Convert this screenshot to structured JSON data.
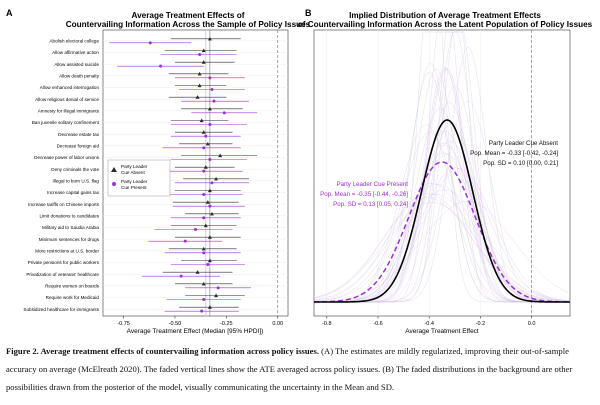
{
  "panels": {
    "a": {
      "letter": "A",
      "title_line1": "Average Treatment Effects of",
      "title_line2": "Countervailing Information Across the Sample of Policy Issues",
      "xlabel": "Average Treatment Effect (Median [95% HPDI])"
    },
    "b": {
      "letter": "B",
      "title_line1": "Implied Distribution of Average Treatment Effects",
      "title_line2": "of Countervailing Information Across the Latent Population of Policy Issues",
      "xlabel": "Average Treatment Effect",
      "annotation_absent": {
        "line1": "Party Leader Cue Absent",
        "line2": "Pop. Mean = -0.33 [-0.42, -0.24]",
        "line3": "Pop. SD = 0.10 [0.00, 0.21]"
      },
      "annotation_present": {
        "line1": "Party Leader Cue Present",
        "line2": "Pop. Mean = -0.35 [-0.44, -0.26]",
        "line3": "Pop. SD = 0.13 [0.05, 0.24]"
      }
    }
  },
  "colors": {
    "absent": "#2b2b2b",
    "present": "#9b30d9",
    "reference_line": "#e05a5a",
    "faded_line": "#c9c9d6",
    "faded_present": "#d9b8f0"
  },
  "chart_data": [
    {
      "type": "scatter",
      "panel": "A",
      "xlim": [
        -0.85,
        0.05
      ],
      "xticks": [
        "-0.75",
        "-0.50",
        "-0.25",
        "0.00"
      ],
      "xtick_values": [
        -0.75,
        -0.5,
        -0.25,
        0.0
      ],
      "reference_line_x": 0.0,
      "average_lines": {
        "absent": -0.33,
        "present": -0.35
      },
      "legend": {
        "absent": "Party Leader Cue Absent",
        "present": "Party Leader Cue Present",
        "placement": "upper-left, inside plot"
      },
      "categories": [
        "Abolish electoral college",
        "Allow affirmative action",
        "Allow assisted suicide",
        "Allow death penalty",
        "Allow enhanced interrogation",
        "Allow religious denial of service",
        "Amnesty for illegal immigrants",
        "Ban juvenile solitary confinement",
        "Decrease estate tax",
        "Decrease foreign aid",
        "Decrease power of labor unions",
        "Deny criminals the vote",
        "Illegal to burn U.S. flag",
        "Increase capital gains tax",
        "Increase tariffs on Chinese imports",
        "Limit donations to candidates",
        "Military aid to Saudia Arabia",
        "Minimum sentences for drugs",
        "More restrictions at U.S. border",
        "Private pensions for public workers",
        "Privatization of veterans' healthcare",
        "Require women on boards",
        "Require work for Medicaid",
        "Subsidized healthcare for immigrants"
      ],
      "series": [
        {
          "name": "Party Leader Cue Absent",
          "marker": "triangle",
          "values": [
            -0.33,
            -0.36,
            -0.36,
            -0.38,
            -0.38,
            -0.39,
            -0.33,
            -0.37,
            -0.36,
            -0.34,
            -0.28,
            -0.35,
            -0.3,
            -0.33,
            -0.34,
            -0.32,
            -0.35,
            -0.33,
            -0.36,
            -0.33,
            -0.39,
            -0.36,
            -0.3,
            -0.33
          ],
          "low": [
            -0.52,
            -0.55,
            -0.5,
            -0.53,
            -0.5,
            -0.53,
            -0.47,
            -0.52,
            -0.5,
            -0.48,
            -0.47,
            -0.5,
            -0.46,
            -0.5,
            -0.51,
            -0.45,
            -0.52,
            -0.5,
            -0.53,
            -0.47,
            -0.56,
            -0.5,
            -0.45,
            -0.48
          ],
          "high": [
            -0.18,
            -0.2,
            -0.21,
            -0.24,
            -0.25,
            -0.25,
            -0.17,
            -0.24,
            -0.22,
            -0.22,
            -0.1,
            -0.21,
            -0.14,
            -0.18,
            -0.19,
            -0.19,
            -0.2,
            -0.18,
            -0.2,
            -0.2,
            -0.22,
            -0.22,
            -0.16,
            -0.19
          ]
        },
        {
          "name": "Party Leader Cue Present",
          "marker": "dot",
          "values": [
            -0.62,
            -0.38,
            -0.57,
            -0.33,
            -0.32,
            -0.31,
            -0.26,
            -0.33,
            -0.35,
            -0.36,
            -0.33,
            -0.36,
            -0.32,
            -0.36,
            -0.33,
            -0.36,
            -0.4,
            -0.45,
            -0.36,
            -0.34,
            -0.47,
            -0.29,
            -0.36,
            -0.37
          ],
          "low": [
            -0.82,
            -0.57,
            -0.78,
            -0.5,
            -0.48,
            -0.47,
            -0.42,
            -0.52,
            -0.52,
            -0.56,
            -0.52,
            -0.56,
            -0.5,
            -0.55,
            -0.51,
            -0.52,
            -0.6,
            -0.63,
            -0.55,
            -0.52,
            -0.66,
            -0.45,
            -0.54,
            -0.55
          ],
          "high": [
            -0.42,
            -0.2,
            -0.36,
            -0.16,
            -0.16,
            -0.14,
            -0.1,
            -0.15,
            -0.18,
            -0.18,
            -0.15,
            -0.17,
            -0.14,
            -0.17,
            -0.16,
            -0.18,
            -0.22,
            -0.27,
            -0.18,
            -0.16,
            -0.28,
            -0.13,
            -0.18,
            -0.19
          ]
        }
      ]
    },
    {
      "type": "line",
      "panel": "B",
      "xlim": [
        -0.85,
        0.15
      ],
      "xticks": [
        "-0.8",
        "-0.6",
        "-0.4",
        "-0.2",
        "0.0"
      ],
      "xtick_values": [
        -0.8,
        -0.6,
        -0.4,
        -0.2,
        0.0
      ],
      "reference_line_x": 0.0,
      "series": [
        {
          "name": "Party Leader Cue Absent",
          "distribution": "normal",
          "mean": -0.33,
          "sd": 0.1,
          "style": "solid"
        },
        {
          "name": "Party Leader Cue Present",
          "distribution": "normal",
          "mean": -0.35,
          "sd": 0.13,
          "style": "dashed"
        }
      ]
    }
  ],
  "caption": {
    "label": "Figure 2. Average treatment effects of countervailing information across policy issues.",
    "text": " (A) The estimates are mildly regularized, improving their out-of-sample accuracy on average (McElreath 2020). The faded vertical lines show the ATE averaged across policy issues. (B) The faded distributions in the background are other possibilities drawn from the posterior of the model, visually communicating the uncertainty in the Mean and SD."
  }
}
